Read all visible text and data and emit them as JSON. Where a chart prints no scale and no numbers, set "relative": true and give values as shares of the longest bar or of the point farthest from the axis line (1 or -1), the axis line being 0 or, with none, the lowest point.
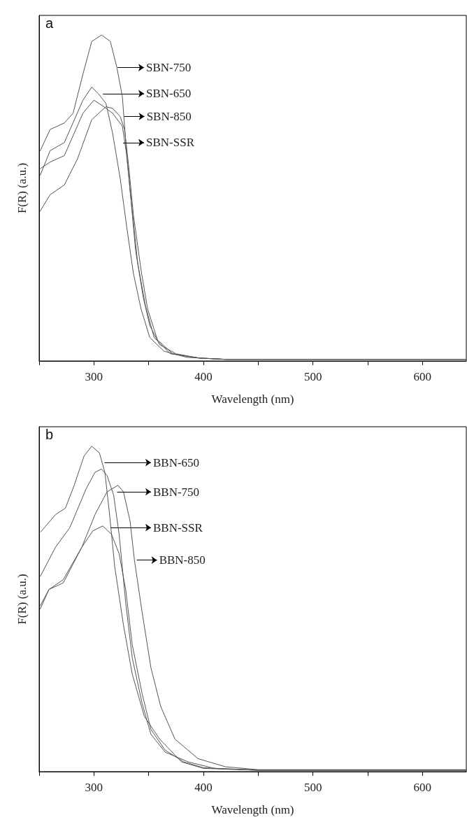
{
  "chart_data": [
    {
      "type": "line",
      "title": "a",
      "xlabel": "Wavelength (nm)",
      "ylabel": "F(R) (a.u.)",
      "relative": true,
      "xlim": [
        250,
        640
      ],
      "xticks": [
        {
          "value": 250,
          "label": null
        },
        300,
        {
          "value": 350,
          "label": null
        },
        400,
        {
          "value": 450,
          "label": null
        },
        500,
        {
          "value": 550,
          "label": null
        },
        600
      ],
      "grid": false,
      "marker": "none",
      "line_style": "solid",
      "series": [
        {
          "color": "#555555",
          "x": [
            251,
            260,
            273,
            281,
            290,
            298,
            307,
            315,
            321,
            326,
            330,
            334,
            338,
            345,
            351,
            360,
            375,
            396,
            420,
            640
          ],
          "values": [
            0.645,
            0.71,
            0.73,
            0.76,
            0.88,
            0.98,
            1.0,
            0.98,
            0.9,
            0.81,
            0.63,
            0.49,
            0.34,
            0.196,
            0.109,
            0.05,
            0.022,
            0.009,
            0.005,
            0.005
          ]
        },
        {
          "color": "#555555",
          "x": [
            251,
            260,
            273,
            290,
            298,
            304,
            311,
            317,
            324,
            330,
            336,
            343,
            351,
            364,
            385,
            420,
            640
          ],
          "values": [
            0.57,
            0.645,
            0.67,
            0.8,
            0.84,
            0.82,
            0.79,
            0.7,
            0.56,
            0.41,
            0.27,
            0.16,
            0.072,
            0.03,
            0.011,
            0.005,
            0.005
          ]
        },
        {
          "color": "#555555",
          "x": [
            251,
            260,
            273,
            290,
            300,
            309,
            317,
            326,
            330,
            334,
            340,
            347,
            355,
            370,
            396,
            420,
            640
          ],
          "values": [
            0.59,
            0.61,
            0.63,
            0.76,
            0.8,
            0.78,
            0.76,
            0.72,
            0.63,
            0.49,
            0.3,
            0.17,
            0.072,
            0.022,
            0.009,
            0.005,
            0.005
          ]
        },
        {
          "color": "#555555",
          "x": [
            251,
            260,
            273,
            285,
            298,
            311,
            317,
            324,
            328,
            332,
            336,
            343,
            349,
            358,
            372,
            396,
            420,
            640
          ],
          "values": [
            0.46,
            0.51,
            0.54,
            0.62,
            0.74,
            0.78,
            0.775,
            0.75,
            0.71,
            0.59,
            0.45,
            0.28,
            0.16,
            0.065,
            0.022,
            0.009,
            0.005,
            0.005
          ]
        }
      ],
      "annotations": [
        {
          "text": "SBN-750",
          "x": 321,
          "y": 0.9
        },
        {
          "text": "SBN-650",
          "x": 307.6,
          "y": 0.82
        },
        {
          "text": "SBN-850",
          "x": 327,
          "y": 0.75
        },
        {
          "text": "SBN-SSR",
          "x": 326,
          "y": 0.67
        }
      ]
    },
    {
      "type": "line",
      "title": "b",
      "xlabel": "Wavelength (nm)",
      "ylabel": "F(R) (a.u.)",
      "relative": true,
      "xlim": [
        250,
        640
      ],
      "xticks": [
        {
          "value": 250,
          "label": null
        },
        300,
        {
          "value": 350,
          "label": null
        },
        400,
        {
          "value": 450,
          "label": null
        },
        500,
        {
          "value": 550,
          "label": null
        },
        600
      ],
      "grid": false,
      "marker": "none",
      "line_style": "solid",
      "series": [
        {
          "color": "#555555",
          "x": [
            251.5,
            265,
            274,
            282,
            291,
            298,
            305,
            310,
            314,
            319,
            327,
            335,
            346,
            360,
            380,
            400,
            450,
            640
          ],
          "values": [
            0.737,
            0.79,
            0.81,
            0.88,
            0.97,
            1.0,
            0.98,
            0.92,
            0.8,
            0.63,
            0.45,
            0.3,
            0.17,
            0.1,
            0.03,
            0.01,
            0.004,
            0.004
          ]
        },
        {
          "color": "#555555",
          "x": [
            251,
            265,
            278,
            293,
            301,
            307,
            312,
            318,
            323,
            329,
            335,
            344,
            352,
            365,
            386,
            410,
            450,
            640
          ],
          "values": [
            0.6,
            0.69,
            0.75,
            0.87,
            0.92,
            0.93,
            0.91,
            0.85,
            0.73,
            0.52,
            0.35,
            0.21,
            0.115,
            0.06,
            0.03,
            0.01,
            0.005,
            0.005
          ]
        },
        {
          "color": "#555555",
          "x": [
            251,
            259,
            272,
            289,
            299,
            308,
            316,
            323,
            329,
            335,
            344,
            352,
            365,
            382,
            400,
            450,
            640
          ],
          "values": [
            0.5,
            0.56,
            0.58,
            0.69,
            0.74,
            0.755,
            0.73,
            0.67,
            0.56,
            0.39,
            0.24,
            0.13,
            0.066,
            0.03,
            0.012,
            0.004,
            0.004
          ]
        },
        {
          "color": "#555555",
          "x": [
            251,
            259,
            272,
            289,
            301,
            312,
            322,
            327,
            333,
            337,
            344,
            352,
            361,
            374,
            395,
            420,
            450,
            640
          ],
          "values": [
            0.51,
            0.56,
            0.59,
            0.69,
            0.79,
            0.86,
            0.88,
            0.86,
            0.77,
            0.65,
            0.49,
            0.32,
            0.2,
            0.1,
            0.04,
            0.015,
            0.006,
            0.006
          ]
        }
      ],
      "annotations": [
        {
          "text": "BBN-650",
          "x": 309,
          "y": 0.95
        },
        {
          "text": "BBN-750",
          "x": 320.5,
          "y": 0.86
        },
        {
          "text": "BBN-SSR",
          "x": 315,
          "y": 0.75
        },
        {
          "text": "BBN-850",
          "x": 338.5,
          "y": 0.65
        }
      ]
    }
  ]
}
